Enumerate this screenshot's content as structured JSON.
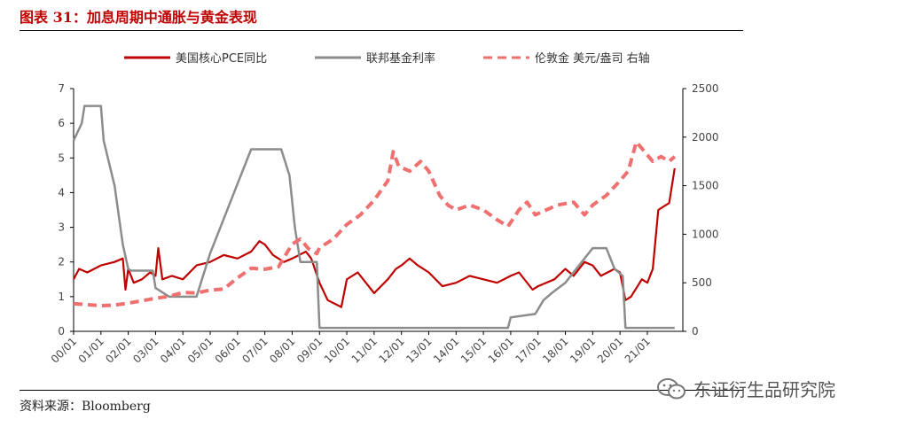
{
  "title": "图表 31：加息周期中通胀与黄金表现",
  "source": "资料来源：Bloomberg",
  "watermark": "东证衍生品研究院",
  "colors": {
    "pce": "#c00000",
    "fed": "#8c8c8c",
    "gold": "#f07070",
    "title": "#c00000"
  },
  "chart_data": {
    "type": "line",
    "x_tick_labels": [
      "00/01",
      "01/01",
      "02/01",
      "03/01",
      "04/01",
      "05/01",
      "06/01",
      "07/01",
      "08/01",
      "09/01",
      "10/01",
      "11/01",
      "12/01",
      "13/01",
      "14/01",
      "15/01",
      "16/01",
      "17/01",
      "18/01",
      "19/01",
      "20/01",
      "21/01"
    ],
    "x_range": [
      2000.0,
      2022.3
    ],
    "left_axis": {
      "ylim": [
        0,
        7
      ],
      "ticks": [
        "0",
        "1",
        "2",
        "3",
        "4",
        "5",
        "6",
        "7"
      ]
    },
    "right_axis": {
      "ylim": [
        0,
        2500
      ],
      "ticks": [
        "0",
        "500",
        "1000",
        "1500",
        "2000",
        "2500"
      ]
    },
    "series": [
      {
        "name": "美国核心PCE同比",
        "axis": "left",
        "style": "solid",
        "points": [
          [
            2000.0,
            1.5
          ],
          [
            2000.2,
            1.8
          ],
          [
            2000.5,
            1.7
          ],
          [
            2001.0,
            1.9
          ],
          [
            2001.5,
            2.0
          ],
          [
            2001.8,
            2.1
          ],
          [
            2001.9,
            1.2
          ],
          [
            2002.0,
            1.8
          ],
          [
            2002.2,
            1.4
          ],
          [
            2002.5,
            1.5
          ],
          [
            2002.8,
            1.7
          ],
          [
            2003.0,
            1.6
          ],
          [
            2003.1,
            2.4
          ],
          [
            2003.25,
            1.5
          ],
          [
            2003.6,
            1.6
          ],
          [
            2004.0,
            1.5
          ],
          [
            2004.5,
            1.9
          ],
          [
            2005.0,
            2.0
          ],
          [
            2005.5,
            2.2
          ],
          [
            2006.0,
            2.1
          ],
          [
            2006.5,
            2.3
          ],
          [
            2006.8,
            2.6
          ],
          [
            2007.0,
            2.5
          ],
          [
            2007.3,
            2.2
          ],
          [
            2007.7,
            2.0
          ],
          [
            2008.0,
            2.1
          ],
          [
            2008.5,
            2.3
          ],
          [
            2008.7,
            2.1
          ],
          [
            2009.0,
            1.4
          ],
          [
            2009.3,
            0.9
          ],
          [
            2009.8,
            0.7
          ],
          [
            2010.0,
            1.5
          ],
          [
            2010.4,
            1.7
          ],
          [
            2010.8,
            1.3
          ],
          [
            2011.0,
            1.1
          ],
          [
            2011.5,
            1.5
          ],
          [
            2011.8,
            1.8
          ],
          [
            2012.0,
            1.9
          ],
          [
            2012.3,
            2.1
          ],
          [
            2012.6,
            1.9
          ],
          [
            2013.0,
            1.7
          ],
          [
            2013.5,
            1.3
          ],
          [
            2014.0,
            1.4
          ],
          [
            2014.5,
            1.6
          ],
          [
            2015.0,
            1.5
          ],
          [
            2015.5,
            1.4
          ],
          [
            2016.0,
            1.6
          ],
          [
            2016.3,
            1.7
          ],
          [
            2016.8,
            1.2
          ],
          [
            2017.0,
            1.3
          ],
          [
            2017.6,
            1.5
          ],
          [
            2018.0,
            1.8
          ],
          [
            2018.3,
            1.6
          ],
          [
            2018.7,
            2.0
          ],
          [
            2019.0,
            1.9
          ],
          [
            2019.3,
            1.6
          ],
          [
            2019.8,
            1.8
          ],
          [
            2020.0,
            1.7
          ],
          [
            2020.2,
            0.9
          ],
          [
            2020.4,
            1.0
          ],
          [
            2020.8,
            1.5
          ],
          [
            2021.0,
            1.4
          ],
          [
            2021.2,
            1.8
          ],
          [
            2021.4,
            3.5
          ],
          [
            2021.6,
            3.6
          ],
          [
            2021.8,
            3.7
          ],
          [
            2022.0,
            4.7
          ]
        ]
      },
      {
        "name": "联邦基金利率",
        "axis": "left",
        "style": "solid",
        "points": [
          [
            2000.0,
            5.5
          ],
          [
            2000.3,
            6.0
          ],
          [
            2000.4,
            6.5
          ],
          [
            2001.0,
            6.5
          ],
          [
            2001.1,
            5.5
          ],
          [
            2001.5,
            4.2
          ],
          [
            2001.8,
            2.5
          ],
          [
            2002.0,
            1.8
          ],
          [
            2002.1,
            1.75
          ],
          [
            2002.9,
            1.75
          ],
          [
            2003.0,
            1.25
          ],
          [
            2003.5,
            1.0
          ],
          [
            2004.5,
            1.0
          ],
          [
            2005.0,
            2.25
          ],
          [
            2005.5,
            3.25
          ],
          [
            2006.0,
            4.25
          ],
          [
            2006.5,
            5.25
          ],
          [
            2007.6,
            5.25
          ],
          [
            2007.9,
            4.5
          ],
          [
            2008.1,
            3.0
          ],
          [
            2008.3,
            2.0
          ],
          [
            2008.9,
            2.0
          ],
          [
            2009.0,
            0.1
          ],
          [
            2015.9,
            0.1
          ],
          [
            2016.0,
            0.4
          ],
          [
            2016.9,
            0.5
          ],
          [
            2017.2,
            0.9
          ],
          [
            2017.5,
            1.1
          ],
          [
            2018.0,
            1.4
          ],
          [
            2018.5,
            1.9
          ],
          [
            2019.0,
            2.4
          ],
          [
            2019.5,
            2.4
          ],
          [
            2019.8,
            1.8
          ],
          [
            2020.1,
            1.6
          ],
          [
            2020.2,
            0.1
          ],
          [
            2022.0,
            0.1
          ]
        ]
      },
      {
        "name": "伦敦金 美元/盎司 右轴",
        "axis": "right",
        "style": "dashed",
        "points": [
          [
            2000.0,
            285
          ],
          [
            2000.5,
            275
          ],
          [
            2001.0,
            265
          ],
          [
            2001.5,
            270
          ],
          [
            2002.0,
            290
          ],
          [
            2002.5,
            315
          ],
          [
            2003.0,
            340
          ],
          [
            2003.5,
            360
          ],
          [
            2004.0,
            400
          ],
          [
            2004.5,
            395
          ],
          [
            2005.0,
            425
          ],
          [
            2005.5,
            435
          ],
          [
            2006.0,
            550
          ],
          [
            2006.5,
            650
          ],
          [
            2007.0,
            640
          ],
          [
            2007.5,
            665
          ],
          [
            2008.0,
            900
          ],
          [
            2008.3,
            950
          ],
          [
            2008.6,
            850
          ],
          [
            2008.9,
            800
          ],
          [
            2009.0,
            860
          ],
          [
            2009.5,
            950
          ],
          [
            2010.0,
            1100
          ],
          [
            2010.5,
            1200
          ],
          [
            2011.0,
            1350
          ],
          [
            2011.5,
            1550
          ],
          [
            2011.7,
            1850
          ],
          [
            2011.9,
            1700
          ],
          [
            2012.3,
            1650
          ],
          [
            2012.7,
            1750
          ],
          [
            2013.0,
            1650
          ],
          [
            2013.4,
            1400
          ],
          [
            2013.7,
            1300
          ],
          [
            2014.0,
            1250
          ],
          [
            2014.5,
            1300
          ],
          [
            2015.0,
            1250
          ],
          [
            2015.5,
            1150
          ],
          [
            2015.9,
            1080
          ],
          [
            2016.3,
            1250
          ],
          [
            2016.6,
            1330
          ],
          [
            2016.9,
            1200
          ],
          [
            2017.3,
            1250
          ],
          [
            2017.7,
            1300
          ],
          [
            2018.3,
            1330
          ],
          [
            2018.7,
            1200
          ],
          [
            2019.0,
            1300
          ],
          [
            2019.5,
            1400
          ],
          [
            2020.0,
            1550
          ],
          [
            2020.3,
            1650
          ],
          [
            2020.6,
            1950
          ],
          [
            2020.9,
            1850
          ],
          [
            2021.2,
            1750
          ],
          [
            2021.5,
            1800
          ],
          [
            2021.8,
            1750
          ],
          [
            2022.0,
            1800
          ]
        ]
      }
    ],
    "legend_placement": "top",
    "grid": false
  }
}
